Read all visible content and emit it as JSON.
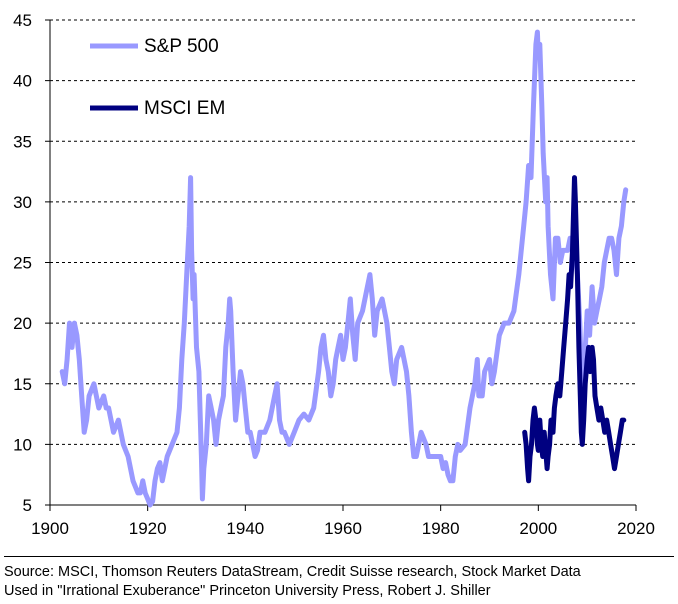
{
  "chart_data": {
    "type": "line",
    "xlim": [
      1900,
      2020
    ],
    "ylim": [
      5,
      45
    ],
    "x_ticks": [
      1900,
      1920,
      1940,
      1960,
      1980,
      2000,
      2020
    ],
    "y_ticks": [
      5,
      10,
      15,
      20,
      25,
      30,
      35,
      40,
      45
    ],
    "grid": "horizontal dashed",
    "legend_position": "top-left",
    "colors": {
      "sp500": "#9999ff",
      "msci_em": "#000080"
    },
    "series": [
      {
        "name": "S&P 500",
        "color": "#9999ff",
        "points": [
          [
            1902.5,
            16
          ],
          [
            1903.0,
            15
          ],
          [
            1903.5,
            17
          ],
          [
            1904.0,
            20
          ],
          [
            1904.5,
            18
          ],
          [
            1905.0,
            20
          ],
          [
            1905.5,
            19
          ],
          [
            1906.0,
            17
          ],
          [
            1906.5,
            14
          ],
          [
            1907.0,
            11
          ],
          [
            1907.5,
            12
          ],
          [
            1908.0,
            14
          ],
          [
            1909.0,
            15
          ],
          [
            1910.0,
            13
          ],
          [
            1911.0,
            14
          ],
          [
            1911.5,
            13
          ],
          [
            1912.0,
            13
          ],
          [
            1913.0,
            11
          ],
          [
            1914.0,
            12
          ],
          [
            1915.0,
            10
          ],
          [
            1916.0,
            9
          ],
          [
            1917.0,
            7
          ],
          [
            1918.0,
            6
          ],
          [
            1918.5,
            6
          ],
          [
            1919.0,
            7
          ],
          [
            1919.5,
            6
          ],
          [
            1920.0,
            5.5
          ],
          [
            1920.5,
            5
          ],
          [
            1921.0,
            5.3
          ],
          [
            1921.5,
            7
          ],
          [
            1922.0,
            8
          ],
          [
            1922.5,
            8.5
          ],
          [
            1923.0,
            7
          ],
          [
            1924.0,
            9
          ],
          [
            1925.0,
            10
          ],
          [
            1926.0,
            11
          ],
          [
            1926.5,
            13
          ],
          [
            1927.0,
            17
          ],
          [
            1927.5,
            20
          ],
          [
            1928.0,
            24
          ],
          [
            1928.5,
            28
          ],
          [
            1928.8,
            32
          ],
          [
            1929.0,
            26
          ],
          [
            1929.3,
            22
          ],
          [
            1929.5,
            24
          ],
          [
            1930.0,
            18
          ],
          [
            1930.5,
            16
          ],
          [
            1931.0,
            9
          ],
          [
            1931.2,
            5.5
          ],
          [
            1931.5,
            8
          ],
          [
            1932.0,
            10
          ],
          [
            1932.5,
            14
          ],
          [
            1933.0,
            13
          ],
          [
            1933.5,
            12
          ],
          [
            1934.0,
            10
          ],
          [
            1934.5,
            12
          ],
          [
            1935.0,
            13
          ],
          [
            1935.5,
            14
          ],
          [
            1936.0,
            18
          ],
          [
            1936.5,
            20
          ],
          [
            1936.8,
            22
          ],
          [
            1937.0,
            21
          ],
          [
            1937.5,
            16
          ],
          [
            1938.0,
            12
          ],
          [
            1938.5,
            14
          ],
          [
            1939.0,
            16
          ],
          [
            1939.5,
            15
          ],
          [
            1940.0,
            13
          ],
          [
            1940.5,
            11
          ],
          [
            1941.0,
            11
          ],
          [
            1941.5,
            10
          ],
          [
            1942.0,
            9
          ],
          [
            1942.5,
            9.5
          ],
          [
            1943.0,
            11
          ],
          [
            1944.0,
            11
          ],
          [
            1945.0,
            12
          ],
          [
            1946.0,
            14
          ],
          [
            1946.5,
            15
          ],
          [
            1947.0,
            12
          ],
          [
            1947.5,
            11
          ],
          [
            1948.0,
            11
          ],
          [
            1949.0,
            10
          ],
          [
            1950.0,
            11
          ],
          [
            1951.0,
            12
          ],
          [
            1952.0,
            12.5
          ],
          [
            1953.0,
            12
          ],
          [
            1954.0,
            13
          ],
          [
            1955.0,
            16
          ],
          [
            1955.5,
            18
          ],
          [
            1956.0,
            19
          ],
          [
            1956.5,
            17
          ],
          [
            1957.0,
            16
          ],
          [
            1957.5,
            14
          ],
          [
            1958.0,
            15
          ],
          [
            1958.5,
            17
          ],
          [
            1959.0,
            18
          ],
          [
            1959.5,
            19
          ],
          [
            1960.0,
            17
          ],
          [
            1960.5,
            18
          ],
          [
            1961.0,
            20
          ],
          [
            1961.5,
            22
          ],
          [
            1962.0,
            19
          ],
          [
            1962.5,
            17
          ],
          [
            1963.0,
            20
          ],
          [
            1964.0,
            21
          ],
          [
            1965.0,
            23
          ],
          [
            1965.5,
            24
          ],
          [
            1966.0,
            22
          ],
          [
            1966.5,
            19
          ],
          [
            1967.0,
            21
          ],
          [
            1968.0,
            22
          ],
          [
            1968.5,
            21
          ],
          [
            1969.0,
            20
          ],
          [
            1969.5,
            18
          ],
          [
            1970.0,
            16
          ],
          [
            1970.5,
            15
          ],
          [
            1971.0,
            17
          ],
          [
            1972.0,
            18
          ],
          [
            1973.0,
            16
          ],
          [
            1973.5,
            14
          ],
          [
            1974.0,
            11
          ],
          [
            1974.5,
            9
          ],
          [
            1975.0,
            9
          ],
          [
            1975.5,
            10
          ],
          [
            1976.0,
            11
          ],
          [
            1977.0,
            10
          ],
          [
            1977.5,
            9
          ],
          [
            1978.0,
            9
          ],
          [
            1979.0,
            9
          ],
          [
            1980.0,
            9
          ],
          [
            1980.5,
            8
          ],
          [
            1981.0,
            8.5
          ],
          [
            1981.5,
            7.5
          ],
          [
            1982.0,
            7
          ],
          [
            1982.5,
            7
          ],
          [
            1983.0,
            9
          ],
          [
            1983.5,
            10
          ],
          [
            1984.0,
            9.5
          ],
          [
            1985.0,
            10
          ],
          [
            1986.0,
            13
          ],
          [
            1987.0,
            15
          ],
          [
            1987.5,
            17
          ],
          [
            1987.8,
            14
          ],
          [
            1988.0,
            14
          ],
          [
            1988.5,
            14
          ],
          [
            1989.0,
            16
          ],
          [
            1990.0,
            17
          ],
          [
            1990.5,
            15
          ],
          [
            1991.0,
            16
          ],
          [
            1992.0,
            19
          ],
          [
            1993.0,
            20
          ],
          [
            1994.0,
            20
          ],
          [
            1995.0,
            21
          ],
          [
            1996.0,
            24
          ],
          [
            1997.0,
            28
          ],
          [
            1997.5,
            30
          ],
          [
            1998.0,
            33
          ],
          [
            1998.5,
            32
          ],
          [
            1999.0,
            38
          ],
          [
            1999.5,
            43
          ],
          [
            1999.8,
            44
          ],
          [
            2000.0,
            42
          ],
          [
            2000.3,
            43
          ],
          [
            2000.7,
            38
          ],
          [
            2001.0,
            34
          ],
          [
            2001.5,
            30
          ],
          [
            2001.8,
            32
          ],
          [
            2002.0,
            28
          ],
          [
            2002.5,
            24
          ],
          [
            2003.0,
            22
          ],
          [
            2003.5,
            27
          ],
          [
            2004.0,
            27
          ],
          [
            2004.5,
            25
          ],
          [
            2005.0,
            26
          ],
          [
            2005.5,
            26
          ],
          [
            2006.0,
            26
          ],
          [
            2006.5,
            27
          ],
          [
            2007.0,
            27
          ],
          [
            2007.5,
            26
          ],
          [
            2008.0,
            24
          ],
          [
            2008.5,
            20
          ],
          [
            2008.8,
            16
          ],
          [
            2009.0,
            13
          ],
          [
            2009.5,
            17
          ],
          [
            2010.0,
            21
          ],
          [
            2010.5,
            19
          ],
          [
            2011.0,
            23
          ],
          [
            2011.5,
            20
          ],
          [
            2012.0,
            21
          ],
          [
            2012.5,
            22
          ],
          [
            2013.0,
            23
          ],
          [
            2013.5,
            25
          ],
          [
            2014.0,
            26
          ],
          [
            2014.5,
            27
          ],
          [
            2015.0,
            27
          ],
          [
            2015.5,
            26
          ],
          [
            2016.0,
            24
          ],
          [
            2016.5,
            27
          ],
          [
            2017.0,
            28
          ],
          [
            2017.5,
            30
          ],
          [
            2017.9,
            31
          ]
        ]
      },
      {
        "name": "MSCI EM",
        "color": "#000080",
        "points": [
          [
            1997.2,
            11
          ],
          [
            1997.5,
            10
          ],
          [
            1997.8,
            8
          ],
          [
            1998.0,
            7
          ],
          [
            1998.3,
            9
          ],
          [
            1998.6,
            10
          ],
          [
            1998.9,
            12
          ],
          [
            1999.2,
            13
          ],
          [
            1999.5,
            12
          ],
          [
            1999.8,
            10
          ],
          [
            2000.0,
            9.5
          ],
          [
            2000.3,
            12
          ],
          [
            2000.6,
            10
          ],
          [
            2000.9,
            9
          ],
          [
            2001.2,
            11
          ],
          [
            2001.5,
            9.5
          ],
          [
            2001.8,
            8
          ],
          [
            2002.0,
            9
          ],
          [
            2002.3,
            10
          ],
          [
            2002.6,
            12
          ],
          [
            2003.0,
            11
          ],
          [
            2003.3,
            13
          ],
          [
            2003.6,
            14
          ],
          [
            2004.0,
            15
          ],
          [
            2004.4,
            14
          ],
          [
            2004.8,
            16
          ],
          [
            2005.2,
            18
          ],
          [
            2005.6,
            20
          ],
          [
            2006.0,
            22
          ],
          [
            2006.3,
            24
          ],
          [
            2006.6,
            23
          ],
          [
            2007.0,
            26
          ],
          [
            2007.2,
            29
          ],
          [
            2007.4,
            32
          ],
          [
            2007.6,
            30
          ],
          [
            2007.8,
            27
          ],
          [
            2008.0,
            24
          ],
          [
            2008.3,
            18
          ],
          [
            2008.6,
            14
          ],
          [
            2008.8,
            11
          ],
          [
            2009.0,
            10
          ],
          [
            2009.3,
            12
          ],
          [
            2009.6,
            15
          ],
          [
            2010.0,
            17
          ],
          [
            2010.3,
            18
          ],
          [
            2010.6,
            16
          ],
          [
            2011.0,
            18
          ],
          [
            2011.3,
            17
          ],
          [
            2011.6,
            14
          ],
          [
            2012.0,
            13
          ],
          [
            2012.4,
            12
          ],
          [
            2012.8,
            13
          ],
          [
            2013.2,
            12
          ],
          [
            2013.6,
            11
          ],
          [
            2014.0,
            12
          ],
          [
            2014.4,
            11
          ],
          [
            2014.8,
            10
          ],
          [
            2015.2,
            9
          ],
          [
            2015.6,
            8
          ],
          [
            2016.0,
            9
          ],
          [
            2016.4,
            10
          ],
          [
            2016.8,
            11
          ],
          [
            2017.2,
            12
          ],
          [
            2017.5,
            12
          ]
        ]
      }
    ]
  },
  "source": {
    "line1": "Source: MSCI, Thomson Reuters DataStream, Credit Suisse research, Stock Market Data",
    "line2": "Used in \"Irrational Exuberance\" Princeton University Press, Robert J. Shiller"
  }
}
